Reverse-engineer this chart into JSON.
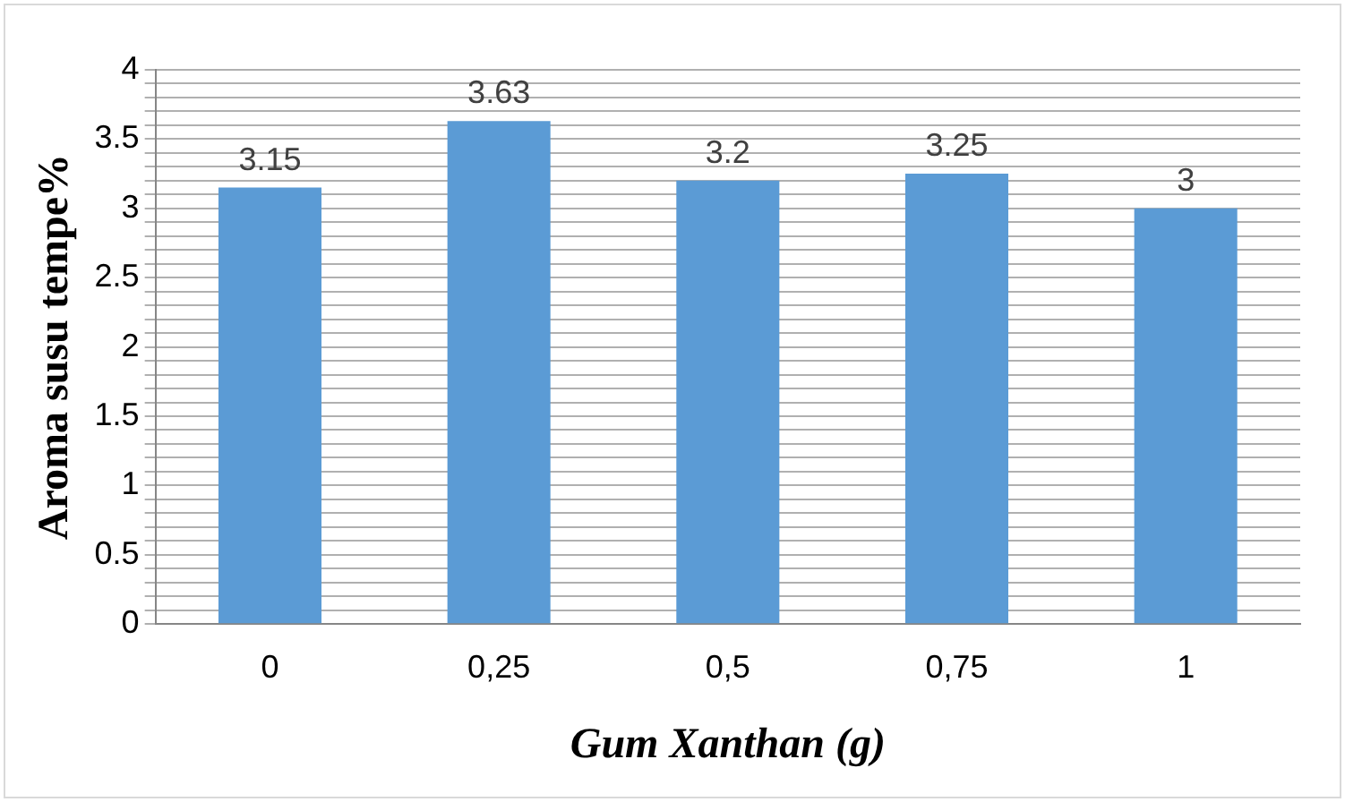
{
  "chart_data": {
    "type": "bar",
    "xlabel": "Gum Xanthan (g)",
    "ylabel": "Aroma susu tempe%",
    "categories": [
      "0",
      "0,25",
      "0,5",
      "0,75",
      "1"
    ],
    "values": [
      3.15,
      3.63,
      3.2,
      3.25,
      3
    ],
    "color": "#5b9bd5",
    "data_labels": true,
    "grid": "y",
    "legend": false,
    "ylim": [
      0,
      4
    ],
    "yticks": [
      0,
      {
        "value": 0.1,
        "label": null
      },
      {
        "value": 0.2,
        "label": null
      },
      {
        "value": 0.3,
        "label": null
      },
      {
        "value": 0.4,
        "label": null
      },
      0.5,
      {
        "value": 0.6,
        "label": null
      },
      {
        "value": 0.7,
        "label": null
      },
      {
        "value": 0.8,
        "label": null
      },
      {
        "value": 0.9,
        "label": null
      },
      1,
      {
        "value": 1.1,
        "label": null
      },
      {
        "value": 1.2,
        "label": null
      },
      {
        "value": 1.3,
        "label": null
      },
      {
        "value": 1.4,
        "label": null
      },
      1.5,
      {
        "value": 1.6,
        "label": null
      },
      {
        "value": 1.7,
        "label": null
      },
      {
        "value": 1.8,
        "label": null
      },
      {
        "value": 1.9,
        "label": null
      },
      2,
      {
        "value": 2.1,
        "label": null
      },
      {
        "value": 2.2,
        "label": null
      },
      {
        "value": 2.3,
        "label": null
      },
      {
        "value": 2.4,
        "label": null
      },
      2.5,
      {
        "value": 2.6,
        "label": null
      },
      {
        "value": 2.7,
        "label": null
      },
      {
        "value": 2.8,
        "label": null
      },
      {
        "value": 2.9,
        "label": null
      },
      3,
      {
        "value": 3.1,
        "label": null
      },
      {
        "value": 3.2,
        "label": null
      },
      {
        "value": 3.3,
        "label": null
      },
      {
        "value": 3.4,
        "label": null
      },
      3.5,
      {
        "value": 3.6,
        "label": null
      },
      {
        "value": 3.7,
        "label": null
      },
      {
        "value": 3.8,
        "label": null
      },
      {
        "value": 3.9,
        "label": null
      },
      4
    ]
  }
}
